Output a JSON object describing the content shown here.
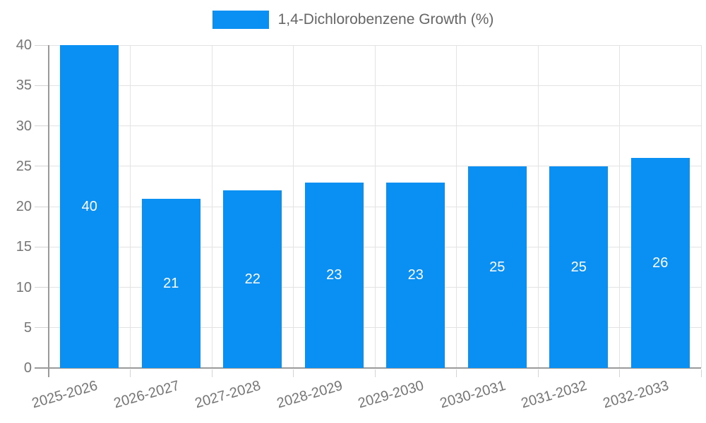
{
  "legend": {
    "label": "1,4-Dichlorobenzene Growth (%)"
  },
  "chart_data": {
    "type": "bar",
    "title": "1,4-Dichlorobenzene Growth (%)",
    "categories": [
      "2025-2026",
      "2026-2027",
      "2027-2028",
      "2028-2029",
      "2029-2030",
      "2030-2031",
      "2031-2032",
      "2032-2033"
    ],
    "values": [
      40,
      21,
      22,
      23,
      23,
      25,
      25,
      26
    ],
    "xlabel": "",
    "ylabel": "",
    "ylim": [
      0,
      40
    ],
    "ytick_step": 5,
    "ytick_labels": [
      "0",
      "5",
      "10",
      "15",
      "20",
      "25",
      "30",
      "35",
      "40"
    ],
    "grid": true,
    "legend_position": "top",
    "value_labels": "inside-center",
    "colors": {
      "bar": "#0A8FF2",
      "value_label": "#FFFFFF",
      "axis": "#9A9A9A",
      "gridline": "#E3E3E3",
      "tick": "#D4D4D4",
      "tick_label": "#757575",
      "legend_text": "#666666"
    }
  }
}
